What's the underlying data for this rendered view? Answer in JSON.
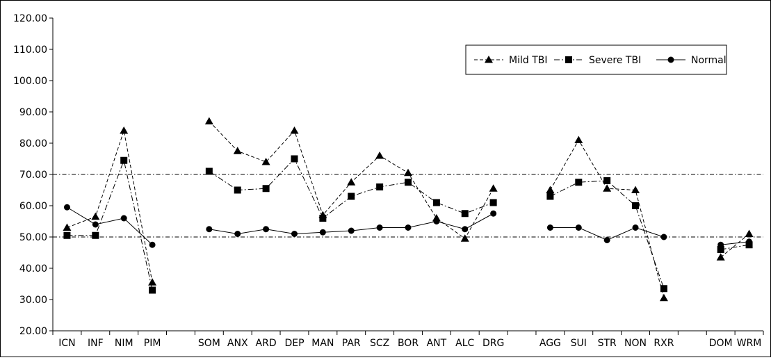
{
  "chart_data": {
    "type": "line",
    "categories": [
      "ICN",
      "INF",
      "NIM",
      "PIM",
      "",
      "SOM",
      "ANX",
      "ARD",
      "DEP",
      "MAN",
      "PAR",
      "SCZ",
      "BOR",
      "ANT",
      "ALC",
      "DRG",
      "",
      "AGG",
      "SUI",
      "STR",
      "NON",
      "RXR",
      "",
      "DOM",
      "WRM"
    ],
    "ylim": [
      20,
      120
    ],
    "yticks": [
      "20.00",
      "30.00",
      "40.00",
      "50.00",
      "60.00",
      "70.00",
      "80.00",
      "90.00",
      "100.00",
      "110.00",
      "120.00"
    ],
    "reference_lines": [
      50,
      70
    ],
    "legend_position": "top-right",
    "grid": false,
    "series": [
      {
        "name": "Mild TBI",
        "marker": "triangle",
        "line_style": "dashed",
        "values": [
          53,
          56.5,
          84,
          35.5,
          null,
          87,
          77.5,
          74,
          84,
          57,
          67.5,
          76,
          70.5,
          56,
          49.5,
          65.5,
          null,
          65,
          81,
          65.5,
          65,
          30.5,
          null,
          43.5,
          51
        ]
      },
      {
        "name": "Severe TBI",
        "marker": "square",
        "line_style": "dash-dot",
        "values": [
          50.5,
          50.5,
          74.5,
          33,
          null,
          71,
          65,
          65.5,
          75,
          56,
          63,
          66,
          67.5,
          61,
          57.5,
          61,
          null,
          63,
          67.5,
          68,
          60,
          33.5,
          null,
          46,
          47.5
        ]
      },
      {
        "name": "Normal",
        "marker": "circle",
        "line_style": "solid",
        "values": [
          59.5,
          54,
          56,
          47.5,
          null,
          52.5,
          51,
          52.5,
          51,
          51.5,
          52,
          53,
          53,
          55,
          52.5,
          57.5,
          null,
          53,
          53,
          49,
          53,
          50,
          null,
          47.5,
          48.5
        ]
      }
    ]
  }
}
